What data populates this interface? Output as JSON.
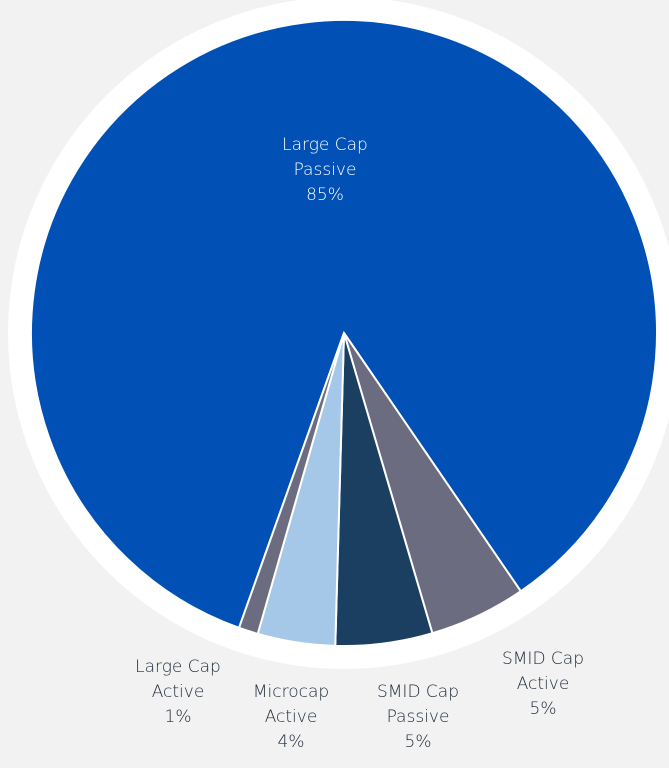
{
  "chart_data": {
    "type": "pie",
    "categories": [
      "Large Cap Passive",
      "SMID Cap Active",
      "SMID Cap Passive",
      "Microcap Active",
      "Large Cap Active"
    ],
    "values": [
      85,
      5,
      5,
      4,
      1
    ],
    "value_labels": [
      "85%",
      "5%",
      "5%",
      "4%",
      "1%"
    ],
    "colors": [
      "#0050b5",
      "#6c6c80",
      "#1b3f60",
      "#a6c8e8",
      "#6c6c80"
    ]
  }
}
